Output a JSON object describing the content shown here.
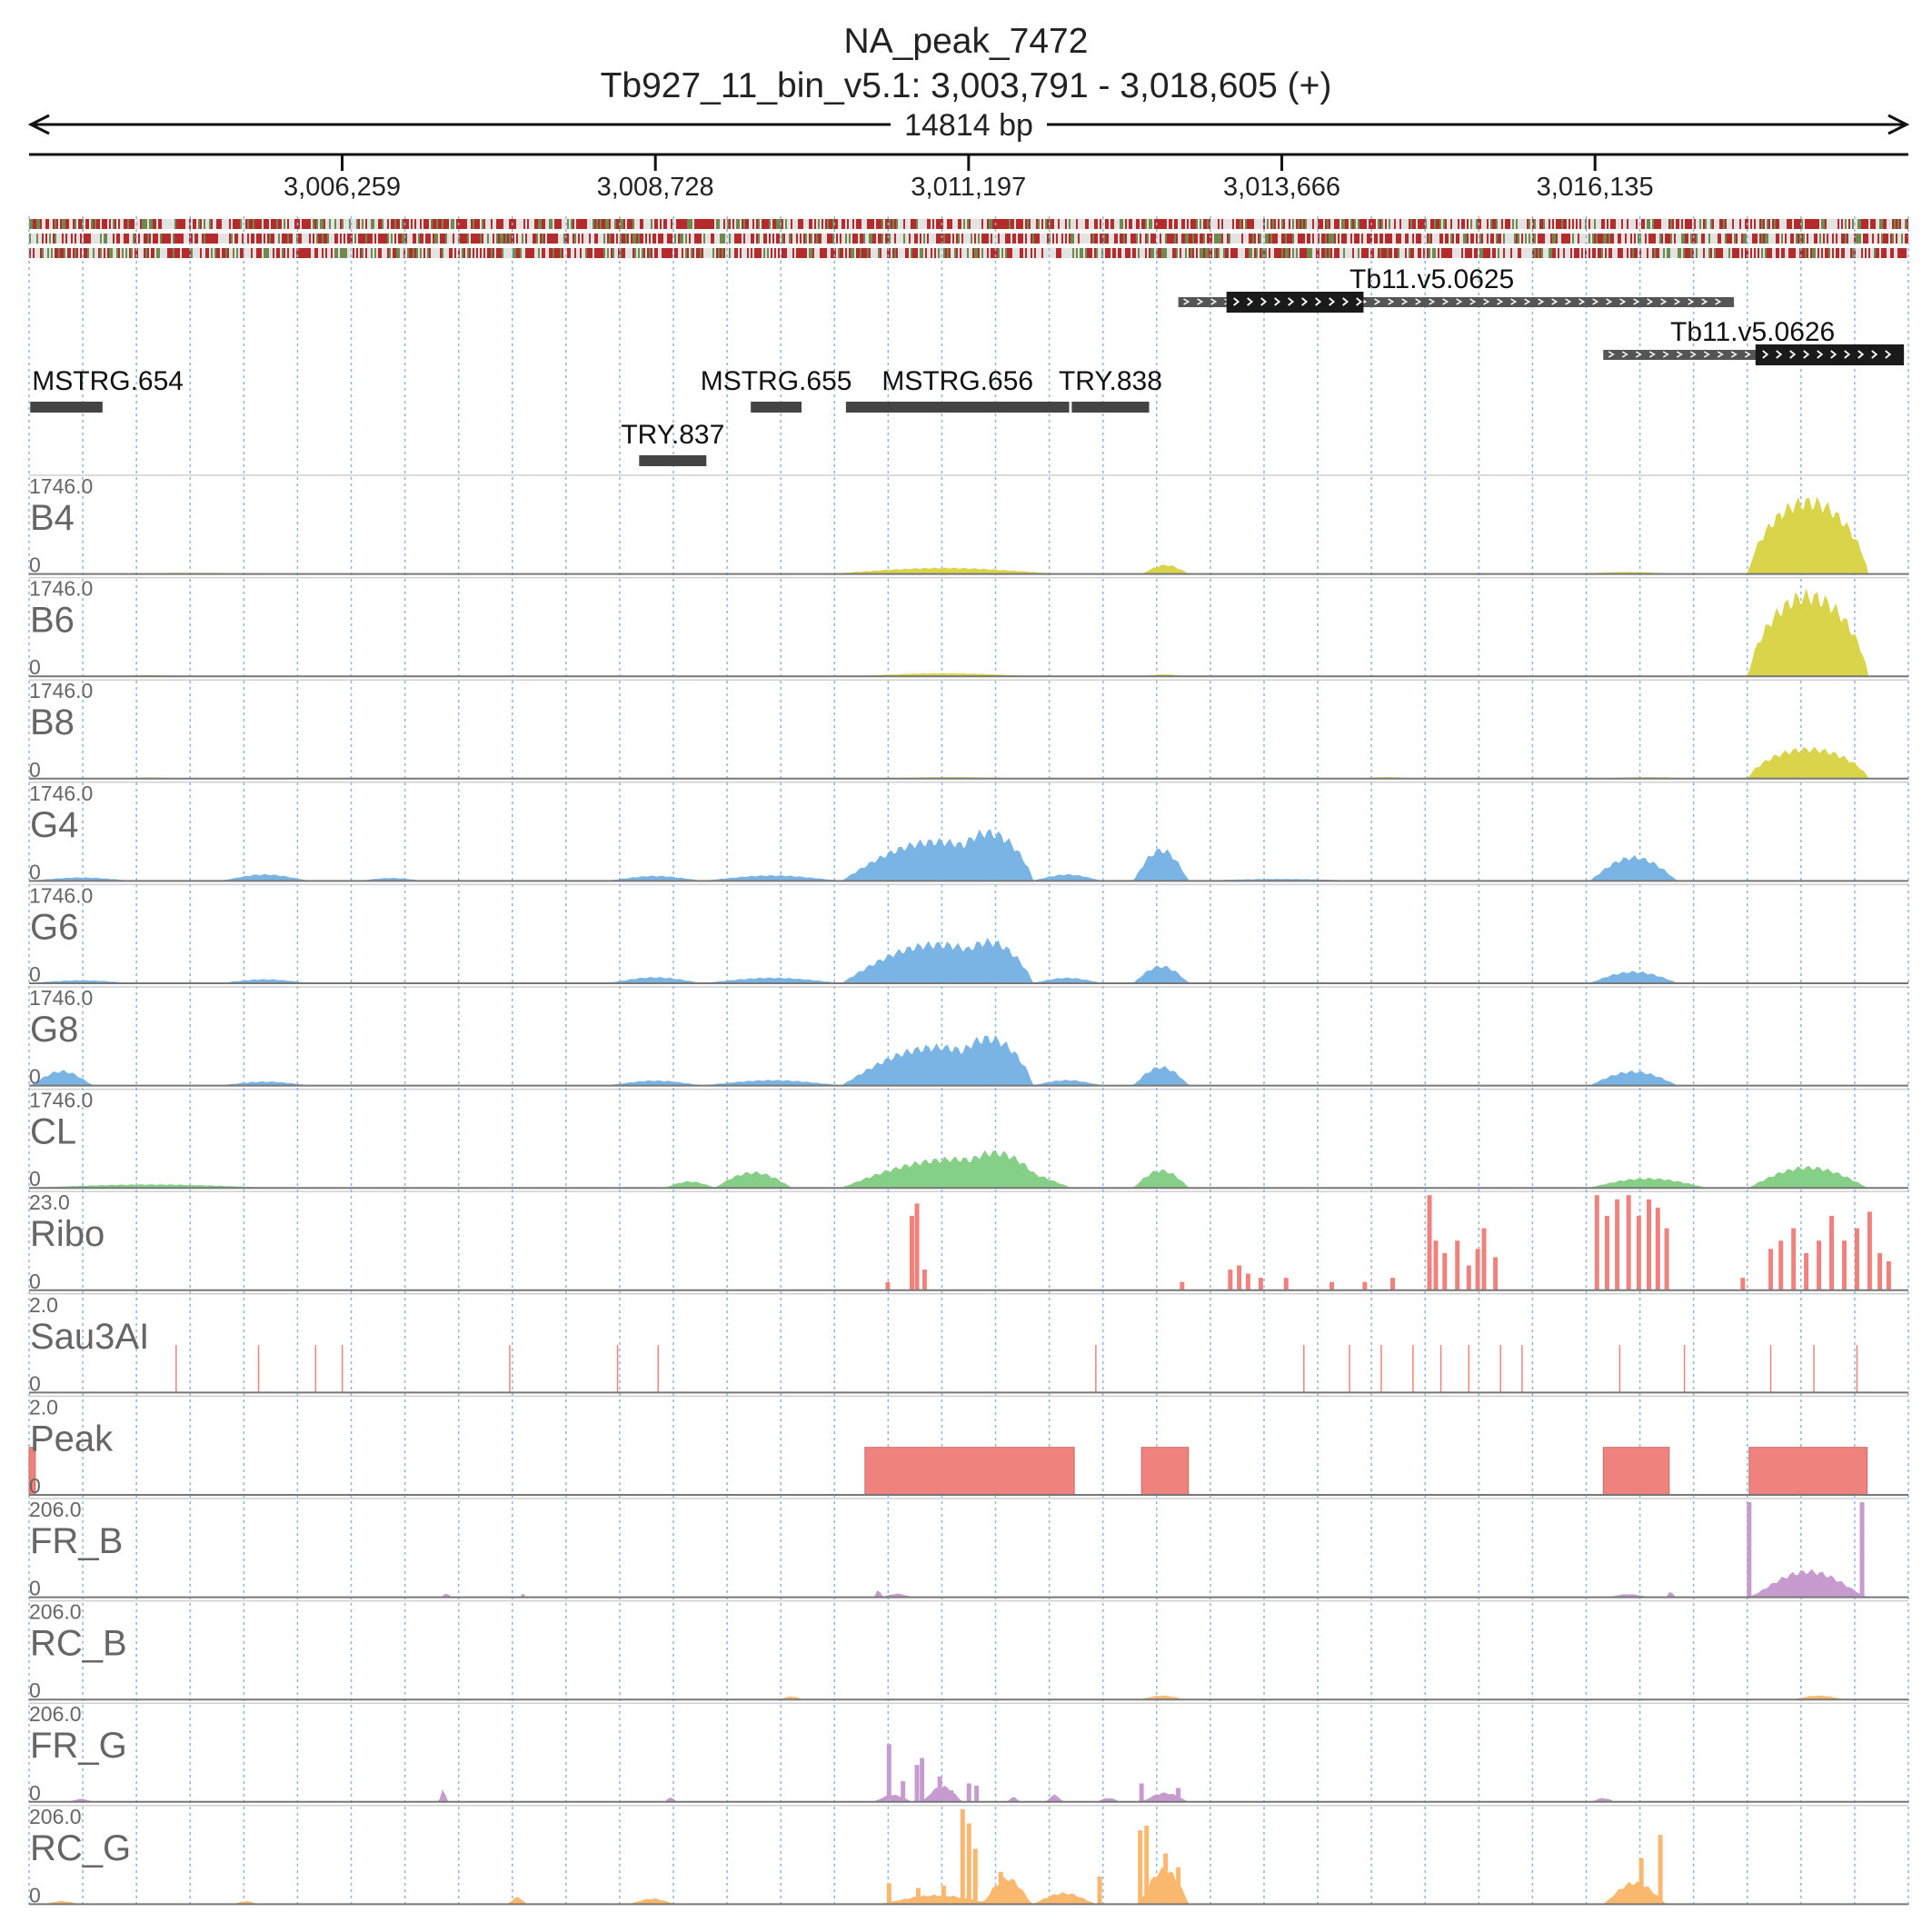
{
  "title": "NA_peak_7472",
  "subtitle": "Tb927_11_bin_v5.1: 3,003,791 - 3,018,605 (+)",
  "span_label": "14814 bp",
  "region": {
    "start": 3003791,
    "end": 3018605
  },
  "chart_data": {
    "type": "area",
    "x_ticks": [
      {
        "value": 3006259,
        "label": "3,006,259"
      },
      {
        "value": 3008728,
        "label": "3,008,728"
      },
      {
        "value": 3011197,
        "label": "3,011,197"
      },
      {
        "value": 3013666,
        "label": "3,013,666"
      },
      {
        "value": 3016135,
        "label": "3,016,135"
      }
    ],
    "features": [
      {
        "name": "Tb11.v5.0625",
        "start": 3012850,
        "end": 3017230,
        "strand": "+",
        "cds": [
          3013230,
          3014310
        ],
        "row": 0
      },
      {
        "name": "Tb11.v5.0626",
        "start": 3016200,
        "end": 3018570,
        "strand": "+",
        "cds": [
          3017400,
          3018570
        ],
        "row": 1
      },
      {
        "name": "MSTRG.654",
        "start": 3003800,
        "end": 3004370,
        "row": 2
      },
      {
        "name": "MSTRG.655",
        "start": 3009480,
        "end": 3009880,
        "row": 2
      },
      {
        "name": "MSTRG.656",
        "start": 3010230,
        "end": 3011990,
        "row": 2
      },
      {
        "name": "TRY.838",
        "start": 3012010,
        "end": 3012620,
        "row": 2
      },
      {
        "name": "TRY.837",
        "start": 3008600,
        "end": 3009130,
        "row": 3
      }
    ],
    "tracks": [
      {
        "name": "B4",
        "max": 1746.0,
        "min": 0,
        "color": "#d9d44a",
        "peaks": [
          [
            3004350,
            3005800,
            15,
            0.6
          ],
          [
            3010100,
            3011900,
            110,
            0.8
          ],
          [
            3012570,
            3012930,
            170,
            0.9
          ],
          [
            3016000,
            3016800,
            30,
            0.8
          ],
          [
            3017350,
            3018280,
            1430,
            1.6
          ]
        ]
      },
      {
        "name": "B6",
        "max": 1746.0,
        "min": 0,
        "color": "#d9d44a",
        "peaks": [
          [
            3004500,
            3005000,
            15,
            0.6
          ],
          [
            3010300,
            3011700,
            50,
            0.8
          ],
          [
            3012580,
            3012900,
            30,
            0.8
          ],
          [
            3017350,
            3018280,
            1590,
            1.6
          ]
        ]
      },
      {
        "name": "B8",
        "max": 1746.0,
        "min": 0,
        "color": "#d9d44a",
        "peaks": [
          [
            3004500,
            3005000,
            15,
            0.6
          ],
          [
            3010500,
            3011600,
            20,
            0.8
          ],
          [
            3014300,
            3014700,
            20,
            0.8
          ],
          [
            3016200,
            3016900,
            20,
            0.8
          ],
          [
            3017350,
            3018280,
            580,
            1.6
          ]
        ]
      },
      {
        "name": "G4",
        "max": 1746.0,
        "min": 0,
        "color": "#79b4e4",
        "peaks": [
          [
            3003800,
            3004600,
            60,
            0.8
          ],
          [
            3005300,
            3006000,
            120,
            0.8
          ],
          [
            3006400,
            3006900,
            50,
            0.8
          ],
          [
            3008350,
            3009100,
            90,
            0.8
          ],
          [
            3009100,
            3010200,
            100,
            0.8
          ],
          [
            3010200,
            3011700,
            780,
            1.0
          ],
          [
            3011000,
            3011700,
            960,
            1.4
          ],
          [
            3011700,
            3012250,
            120,
            0.8
          ],
          [
            3012500,
            3012930,
            610,
            1.0
          ],
          [
            3013000,
            3014300,
            30,
            0.8
          ],
          [
            3016100,
            3016780,
            460,
            1.0
          ]
        ]
      },
      {
        "name": "G6",
        "max": 1746.0,
        "min": 0,
        "color": "#79b4e4",
        "peaks": [
          [
            3003800,
            3004600,
            50,
            0.8
          ],
          [
            3005300,
            3006000,
            70,
            0.8
          ],
          [
            3008350,
            3009100,
            110,
            0.8
          ],
          [
            3009100,
            3010200,
            100,
            0.8
          ],
          [
            3010200,
            3011700,
            770,
            1.0
          ],
          [
            3011000,
            3011700,
            820,
            1.3
          ],
          [
            3011700,
            3012250,
            100,
            0.8
          ],
          [
            3012500,
            3012930,
            330,
            1.0
          ],
          [
            3016100,
            3016780,
            220,
            1.0
          ]
        ]
      },
      {
        "name": "G8",
        "max": 1746.0,
        "min": 0,
        "color": "#79b4e4",
        "peaks": [
          [
            3003800,
            3004300,
            280,
            0.8
          ],
          [
            3005300,
            3006000,
            70,
            0.8
          ],
          [
            3008350,
            3009100,
            90,
            0.8
          ],
          [
            3009100,
            3010200,
            100,
            0.8
          ],
          [
            3010200,
            3011700,
            760,
            1.0
          ],
          [
            3011000,
            3011700,
            940,
            1.4
          ],
          [
            3011700,
            3012250,
            100,
            0.8
          ],
          [
            3012500,
            3012930,
            360,
            1.0
          ],
          [
            3016100,
            3016780,
            270,
            1.0
          ]
        ]
      },
      {
        "name": "CL",
        "max": 1746.0,
        "min": 0,
        "color": "#86cf86",
        "peaks": [
          [
            3003800,
            3005700,
            60,
            0.8
          ],
          [
            3008800,
            3009200,
            120,
            0.8
          ],
          [
            3009200,
            3009800,
            300,
            1.0
          ],
          [
            3010200,
            3012000,
            570,
            1.0
          ],
          [
            3011000,
            3011800,
            700,
            1.2
          ],
          [
            3012500,
            3012930,
            340,
            1.0
          ],
          [
            3016100,
            3017000,
            180,
            1.0
          ],
          [
            3017350,
            3018280,
            400,
            1.0
          ]
        ]
      },
      {
        "name": "Ribo",
        "max": 23.0,
        "min": 0,
        "color": "#f0827d",
        "spikes": [
          [
            3010560,
            2
          ],
          [
            3010750,
            18
          ],
          [
            3010790,
            21
          ],
          [
            3010850,
            5
          ],
          [
            3012880,
            2
          ],
          [
            3013260,
            5
          ],
          [
            3013330,
            6
          ],
          [
            3013400,
            4
          ],
          [
            3013500,
            3
          ],
          [
            3013700,
            3
          ],
          [
            3014060,
            2
          ],
          [
            3014320,
            2
          ],
          [
            3014540,
            3
          ],
          [
            3014830,
            23
          ],
          [
            3014880,
            12
          ],
          [
            3014950,
            9
          ],
          [
            3015050,
            12
          ],
          [
            3015140,
            6
          ],
          [
            3015210,
            10
          ],
          [
            3015260,
            15
          ],
          [
            3015350,
            8
          ],
          [
            3016150,
            23
          ],
          [
            3016230,
            18
          ],
          [
            3016310,
            22
          ],
          [
            3016400,
            23
          ],
          [
            3016480,
            18
          ],
          [
            3016560,
            22
          ],
          [
            3016630,
            20
          ],
          [
            3016700,
            15
          ],
          [
            3017300,
            3
          ],
          [
            3017520,
            10
          ],
          [
            3017600,
            12
          ],
          [
            3017700,
            15
          ],
          [
            3017800,
            9
          ],
          [
            3017900,
            12
          ],
          [
            3018000,
            18
          ],
          [
            3018100,
            12
          ],
          [
            3018200,
            15
          ],
          [
            3018300,
            19
          ],
          [
            3018380,
            9
          ],
          [
            3018450,
            7
          ]
        ]
      },
      {
        "name": "Sau3AI",
        "max": 2.0,
        "min": 0,
        "color": "#f0827d",
        "sites": [
          3004950,
          3005600,
          3006050,
          3006260,
          3007580,
          3008430,
          3008750,
          3012200,
          3013840,
          3014200,
          3014450,
          3014700,
          3014920,
          3015140,
          3015390,
          3015560,
          3016330,
          3016840,
          3017520,
          3017860,
          3018200
        ]
      },
      {
        "name": "Peak",
        "max": 2.0,
        "min": 0,
        "color": "#f0827d",
        "intervals": [
          [
            3003791,
            3003840
          ],
          [
            3010380,
            3012030
          ],
          [
            3012560,
            3012930
          ],
          [
            3016200,
            3016720
          ],
          [
            3017350,
            3018280
          ]
        ]
      },
      {
        "name": "FR_B",
        "max": 206.0,
        "min": 0,
        "color": "#c79bd0",
        "peaks": [
          [
            3007040,
            3007120,
            8,
            0.5
          ],
          [
            3007660,
            3007700,
            8,
            0.5
          ],
          [
            3010450,
            3010520,
            15,
            0.5
          ],
          [
            3010520,
            3010750,
            7,
            0.8
          ],
          [
            3016250,
            3016550,
            6,
            0.8
          ],
          [
            3016700,
            3016760,
            14,
            0.5
          ],
          [
            3017350,
            3018280,
            60,
            0.8
          ]
        ],
        "spikes": [
          [
            3017350,
            206
          ],
          [
            3018240,
            206
          ]
        ]
      },
      {
        "name": "RC_B",
        "max": 206.0,
        "min": 0,
        "color": "#f9b86d",
        "peaks": [
          [
            3009700,
            3009900,
            6,
            0.6
          ],
          [
            3012550,
            3012900,
            8,
            0.8
          ],
          [
            3017700,
            3018100,
            8,
            0.8
          ]
        ]
      },
      {
        "name": "FR_G",
        "max": 206.0,
        "min": 0,
        "color": "#c79bd0",
        "peaks": [
          [
            3004100,
            3004300,
            6,
            0.6
          ],
          [
            3007020,
            3007090,
            30,
            0.5
          ],
          [
            3008800,
            3008900,
            10,
            0.5
          ],
          [
            3010450,
            3010750,
            15,
            0.8
          ],
          [
            3010830,
            3011150,
            35,
            0.8
          ],
          [
            3011500,
            3011600,
            10,
            0.6
          ],
          [
            3011800,
            3011950,
            15,
            0.6
          ],
          [
            3012200,
            3012400,
            8,
            0.6
          ],
          [
            3012560,
            3012930,
            20,
            0.8
          ],
          [
            3016100,
            3016300,
            8,
            0.6
          ]
        ],
        "spikes": [
          [
            3010570,
            125
          ],
          [
            3010680,
            45
          ],
          [
            3010790,
            80
          ],
          [
            3010830,
            95
          ],
          [
            3010970,
            55
          ],
          [
            3011060,
            25
          ],
          [
            3011200,
            40
          ],
          [
            3011260,
            35
          ],
          [
            3012560,
            40
          ],
          [
            3012850,
            30
          ]
        ]
      },
      {
        "name": "RC_G",
        "max": 206.0,
        "min": 0,
        "color": "#f9b86d",
        "peaks": [
          [
            3003900,
            3004200,
            6,
            0.6
          ],
          [
            3005400,
            3005600,
            6,
            0.6
          ],
          [
            3007560,
            3007720,
            15,
            0.6
          ],
          [
            3008510,
            3008900,
            12,
            0.6
          ],
          [
            3010500,
            3011400,
            20,
            0.8
          ],
          [
            3011300,
            3011700,
            60,
            0.8
          ],
          [
            3011700,
            3012200,
            25,
            0.8
          ],
          [
            3012550,
            3012930,
            80,
            1.0
          ],
          [
            3016200,
            3016700,
            50,
            0.8
          ]
        ],
        "spikes": [
          [
            3010570,
            45
          ],
          [
            3010800,
            35
          ],
          [
            3011000,
            40
          ],
          [
            3011150,
            206
          ],
          [
            3011200,
            175
          ],
          [
            3011250,
            120
          ],
          [
            3011450,
            70
          ],
          [
            3011900,
            20
          ],
          [
            3012230,
            60
          ],
          [
            3012550,
            160
          ],
          [
            3012600,
            170
          ],
          [
            3012750,
            110
          ],
          [
            3012850,
            80
          ],
          [
            3016500,
            100
          ],
          [
            3016650,
            150
          ]
        ]
      }
    ]
  }
}
